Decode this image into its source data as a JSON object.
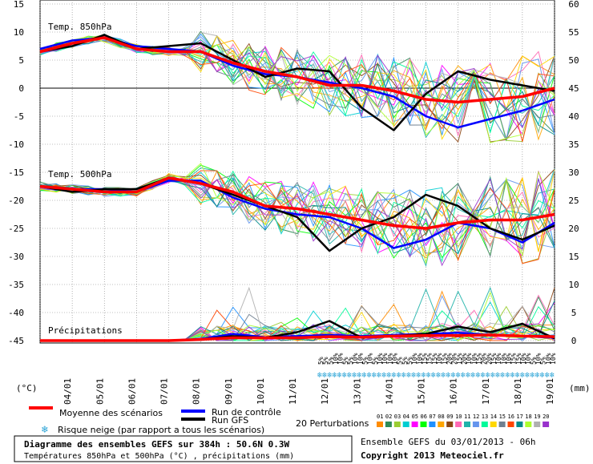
{
  "chart_data": {
    "type": "line",
    "left_axis": {
      "unit": "(°C)",
      "ticks": [
        15,
        10,
        5,
        0,
        -5,
        -10,
        -15,
        -20,
        -25,
        -30,
        -35,
        -40,
        -45
      ]
    },
    "right_axis": {
      "unit": "(mm)",
      "ticks": [
        60,
        55,
        50,
        45,
        40,
        35,
        30,
        25,
        20,
        15,
        10,
        5,
        0
      ]
    },
    "dates": [
      "04/01",
      "05/01",
      "06/01",
      "07/01",
      "08/01",
      "09/01",
      "10/01",
      "11/01",
      "12/01",
      "13/01",
      "14/01",
      "15/01",
      "16/01",
      "17/01",
      "18/01",
      "19/01"
    ],
    "panels": [
      {
        "label": "Temp. 850hPa",
        "x_days": [
          0,
          1,
          2,
          3,
          4,
          5,
          6,
          7,
          8,
          9,
          10,
          11,
          12,
          13,
          14,
          15,
          16
        ],
        "mean": [
          6.5,
          8.0,
          9.0,
          7.0,
          6.5,
          6.5,
          4.5,
          3.0,
          2.0,
          0.5,
          0.5,
          -0.5,
          -2.0,
          -2.5,
          -2.0,
          -1.5,
          0.0
        ],
        "control": [
          7.0,
          8.5,
          9.0,
          7.5,
          7.0,
          6.5,
          4.0,
          2.5,
          2.0,
          1.0,
          0.0,
          -1.5,
          -5.0,
          -7.0,
          -5.5,
          -4.0,
          -2.0
        ],
        "gfs": [
          6.5,
          7.5,
          9.5,
          7.0,
          7.5,
          8.0,
          5.0,
          2.0,
          3.5,
          3.0,
          -3.5,
          -7.5,
          -1.0,
          3.0,
          1.5,
          0.5,
          -0.5
        ]
      },
      {
        "label": "Temp. 500hPa",
        "x_days": [
          0,
          1,
          2,
          3,
          4,
          5,
          6,
          7,
          8,
          9,
          10,
          11,
          12,
          13,
          14,
          15,
          16
        ],
        "mean": [
          -17.5,
          -18.0,
          -18.5,
          -18.5,
          -16.0,
          -17.0,
          -18.5,
          -21.0,
          -21.5,
          -22.5,
          -23.5,
          -24.5,
          -25.0,
          -24.0,
          -23.5,
          -23.5,
          -22.5
        ],
        "control": [
          -17.5,
          -18.0,
          -18.0,
          -18.5,
          -16.5,
          -16.5,
          -19.5,
          -21.5,
          -22.5,
          -23.0,
          -25.0,
          -28.5,
          -27.0,
          -24.0,
          -25.0,
          -27.5,
          -24.0
        ],
        "gfs": [
          -17.5,
          -18.5,
          -18.0,
          -18.0,
          -16.0,
          -17.0,
          -19.0,
          -21.0,
          -23.0,
          -29.0,
          -25.0,
          -23.0,
          -19.0,
          -21.0,
          -25.0,
          -27.0,
          -24.5
        ]
      },
      {
        "label": "Précipitations",
        "x_days": [
          0,
          1,
          2,
          3,
          4,
          5,
          6,
          7,
          8,
          9,
          10,
          11,
          12,
          13,
          14,
          15,
          16
        ],
        "mean": [
          0,
          0,
          0,
          0,
          0,
          0.2,
          0.5,
          0.5,
          0.5,
          0.7,
          0.6,
          0.8,
          0.9,
          0.9,
          1.0,
          0.8,
          0.7
        ],
        "control": [
          0,
          0,
          0,
          0,
          0,
          0.3,
          1.2,
          0.6,
          0.8,
          1.0,
          0.8,
          1.0,
          1.2,
          1.4,
          1.0,
          0.8,
          0.5
        ],
        "gfs": [
          0,
          0,
          0,
          0,
          0,
          0.2,
          0.8,
          0.5,
          1.5,
          3.5,
          0.5,
          0.8,
          1.2,
          2.5,
          1.5,
          3.0,
          0.4
        ]
      }
    ],
    "snow_risk_percent": [
      "5%",
      "5%",
      "5%",
      "10%",
      "10%",
      "5%",
      "5%",
      "10%",
      "10%",
      "5%",
      "10%",
      "5%",
      "10%",
      "10%",
      "10%",
      "10%",
      "5%",
      "5%",
      "5%",
      "10%",
      "10%",
      "15%",
      "15%",
      "15%",
      "10%",
      "15%",
      "20%",
      "20%",
      "15%",
      "20%",
      "10%",
      "10%",
      "15%",
      "20%",
      "20%",
      "15%",
      "10%",
      "10%",
      "10%",
      "15%",
      "15%",
      "10%",
      "10%",
      "5%",
      "10%",
      "5%",
      "10%",
      "10%"
    ]
  },
  "legend": {
    "mean_label": "Moyenne des scénarios",
    "control_label": "Run de contrôle",
    "gfs_label": "Run GFS",
    "snow_label": "Risque neige (par rapport a tous les scénarios)",
    "perturbations_label": "20 Perturbations",
    "perturbation_ids": [
      "01",
      "02",
      "03",
      "04",
      "05",
      "06",
      "07",
      "08",
      "09",
      "10",
      "11",
      "12",
      "13",
      "14",
      "15",
      "16",
      "17",
      "18",
      "19",
      "20"
    ],
    "perturbation_colors": [
      "#ff8c00",
      "#2e8b57",
      "#9acd32",
      "#00ced1",
      "#ff00ff",
      "#00ff00",
      "#1e90ff",
      "#ffa500",
      "#8b4513",
      "#ff69b4",
      "#20b2aa",
      "#6495ed",
      "#00fa9a",
      "#ffd700",
      "#708090",
      "#ff4500",
      "#008b8b",
      "#adff2f",
      "#b0b0b0",
      "#9932cc"
    ]
  },
  "info": {
    "title": "Diagramme des ensembles GEFS sur 384h : 50.6N 0.3W",
    "subtitle": "Températures 850hPa et 500hPa (°C) , précipitations (mm)",
    "run": "Ensemble GEFS du 03/01/2013 - 06h",
    "copyright": "Copyright 2013 Meteociel.fr"
  },
  "colors": {
    "mean": "#ff0000",
    "control": "#0000ff",
    "gfs": "#000000",
    "grid": "#808080",
    "snow": "#29a3d6"
  }
}
